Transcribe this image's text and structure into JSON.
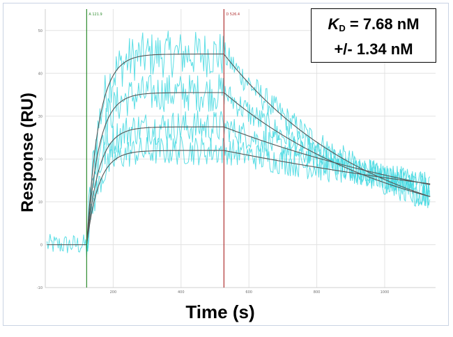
{
  "chart_data": {
    "type": "line",
    "title": "",
    "xlabel": "Time (s)",
    "ylabel": "Response (RU)",
    "xlim": [
      0,
      1150
    ],
    "ylim": [
      -10,
      55
    ],
    "x_ticks": [
      200,
      400,
      600,
      800,
      1000
    ],
    "y_ticks": [
      -10,
      0,
      10,
      20,
      30,
      40,
      50
    ],
    "grid": true,
    "markers": [
      {
        "label": "A 121.9",
        "x": 121.9,
        "color": "#2e8b2e"
      },
      {
        "label": "D 526.4",
        "x": 526.4,
        "color": "#b03030"
      }
    ],
    "kinetics": {
      "association_start": 121.9,
      "dissociation_start": 526.4,
      "end": 1135,
      "baseline": 0,
      "plateaus": [
        44.5,
        35.5,
        27.5,
        22.0
      ],
      "dissociation_end": [
        11.2,
        11.2,
        14.0,
        14.2
      ]
    },
    "annotation": {
      "kd_symbol": "K",
      "kd_subscript": "D",
      "kd_value": " = 7.68 nM",
      "kd_error": "+/- 1.34 nM"
    },
    "colors": {
      "data": "#3fd8e0",
      "fit": "#555555",
      "grid": "#e2e2e2"
    }
  }
}
